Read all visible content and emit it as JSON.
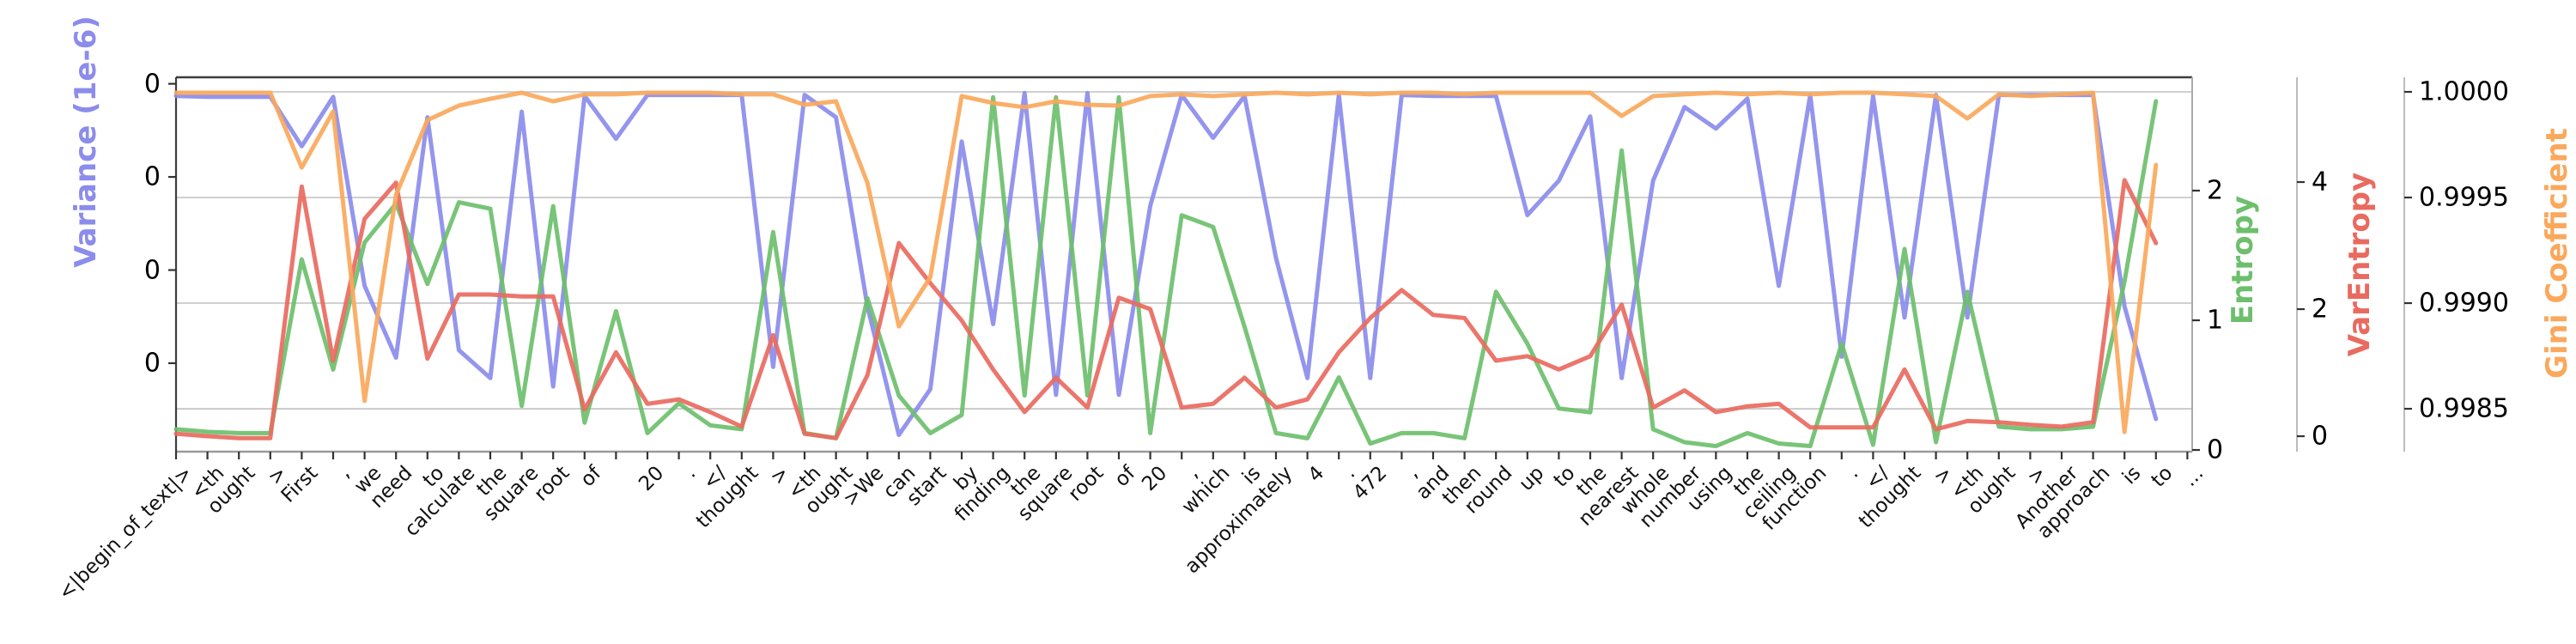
{
  "figure_title": "",
  "chart_data": {
    "type": "line",
    "grid": true,
    "x_categories": [
      "<|begin_of_text|>",
      "<th",
      "ought",
      ">",
      "First",
      ",",
      "we",
      "need",
      "to",
      "calculate",
      "the",
      "square",
      "root",
      "of",
      " ",
      "20",
      ".",
      "</",
      "thought",
      ">",
      "<th",
      "ought",
      ">We",
      "can",
      "start",
      "by",
      "finding",
      "the",
      "square",
      "root",
      "of",
      "20",
      ",",
      "which",
      "is",
      "approximately",
      "4",
      ".",
      "472",
      ",",
      "and",
      "then",
      "round",
      "up",
      "to",
      "the",
      "nearest",
      "whole",
      "number",
      "using",
      "the",
      "ceiling",
      "function",
      ".",
      "</",
      "thought",
      ">",
      "<th",
      "ought",
      ">",
      "Another",
      "approach",
      "is",
      "to",
      "..."
    ],
    "axes": {
      "variance": {
        "label": "Variance (1e-6)",
        "side": "left",
        "color": "#8b8ceb",
        "ticks": [
          0,
          1,
          2,
          3
        ],
        "tick_labels": [
          "0",
          "0",
          "0",
          "0"
        ],
        "range": [
          -0.95,
          3.07
        ],
        "note": "values in tick units; all ticks render as 0 at 1e-6 scale"
      },
      "entropy": {
        "label": "Entropy",
        "side": "right1",
        "color": "#6dbf6d",
        "ticks": [
          0,
          1,
          2
        ],
        "tick_labels": [
          "0",
          "1",
          "2"
        ],
        "range": [
          -0.013,
          2.874
        ]
      },
      "varentropy": {
        "label": "VarEntropy",
        "side": "right2",
        "color": "#e96a5f",
        "ticks": [
          0,
          2,
          4
        ],
        "tick_labels": [
          "0",
          "2",
          "4"
        ],
        "range": [
          -0.243,
          5.649
        ]
      },
      "gini": {
        "label": "Gini Coefficient",
        "side": "right3",
        "color": "#faa85c",
        "ticks": [
          0.9985,
          0.999,
          0.9995,
          1.0
        ],
        "tick_labels": [
          "0.9985",
          "0.9990",
          "0.9995",
          "1.0000"
        ],
        "range": [
          0.998297,
          1.000069
        ]
      }
    },
    "series": [
      {
        "name": "Variance (1e-6)",
        "axis": "variance",
        "color": "#8b8ceb",
        "values": [
          2.87,
          2.86,
          2.86,
          2.86,
          2.33,
          2.86,
          0.83,
          0.06,
          2.64,
          0.14,
          -0.16,
          2.7,
          -0.25,
          2.87,
          2.41,
          2.88,
          2.88,
          2.88,
          2.88,
          -0.04,
          2.88,
          2.64,
          0.61,
          -0.77,
          -0.28,
          2.38,
          0.42,
          2.9,
          -0.34,
          2.9,
          -0.34,
          1.69,
          2.88,
          2.42,
          2.87,
          1.13,
          -0.16,
          2.88,
          -0.16,
          2.88,
          2.87,
          2.87,
          2.87,
          1.59,
          1.96,
          2.65,
          -0.16,
          1.96,
          2.75,
          2.52,
          2.84,
          0.83,
          2.88,
          0.07,
          2.87,
          0.49,
          2.88,
          0.49,
          2.88,
          2.88,
          2.88,
          2.88,
          0.61,
          -0.6,
          null
        ]
      },
      {
        "name": "Entropy",
        "axis": "entropy",
        "color": "#6dbf6d",
        "values": [
          0.16,
          0.14,
          0.13,
          0.13,
          1.47,
          0.62,
          1.6,
          1.9,
          1.28,
          1.91,
          1.86,
          0.34,
          1.88,
          0.21,
          1.07,
          0.13,
          0.36,
          0.19,
          0.16,
          1.68,
          0.13,
          0.09,
          1.17,
          0.42,
          0.13,
          0.27,
          2.72,
          0.42,
          2.72,
          0.42,
          2.72,
          0.13,
          1.81,
          1.72,
          0.95,
          0.13,
          0.09,
          0.56,
          0.05,
          0.13,
          0.13,
          0.09,
          1.22,
          0.82,
          0.32,
          0.29,
          2.31,
          0.16,
          0.06,
          0.03,
          0.13,
          0.05,
          0.03,
          0.82,
          0.04,
          1.55,
          0.06,
          1.22,
          0.18,
          0.16,
          0.16,
          0.18,
          1.3,
          2.69,
          null
        ]
      },
      {
        "name": "VarEntropy",
        "axis": "varentropy",
        "color": "#e96a5f",
        "values": [
          0.04,
          0.0,
          -0.03,
          -0.03,
          3.93,
          1.19,
          3.42,
          3.99,
          1.22,
          2.23,
          2.23,
          2.2,
          2.2,
          0.42,
          1.32,
          0.51,
          0.58,
          0.38,
          0.15,
          1.59,
          0.04,
          -0.03,
          0.96,
          3.04,
          2.41,
          1.82,
          1.05,
          0.38,
          0.92,
          0.45,
          2.18,
          2.0,
          0.45,
          0.51,
          0.92,
          0.45,
          0.58,
          1.32,
          1.86,
          2.3,
          1.91,
          1.86,
          1.19,
          1.26,
          1.05,
          1.26,
          2.07,
          0.45,
          0.72,
          0.38,
          0.47,
          0.51,
          0.14,
          0.14,
          0.14,
          1.05,
          0.11,
          0.24,
          0.22,
          0.18,
          0.15,
          0.22,
          4.03,
          3.04,
          null
        ]
      },
      {
        "name": "Gini Coefficient",
        "axis": "gini",
        "color": "#faa85c",
        "values": [
          0.999996,
          0.999996,
          0.999996,
          0.999996,
          0.999642,
          0.999907,
          0.998537,
          0.999512,
          0.999866,
          0.999935,
          0.999967,
          0.999996,
          0.999955,
          0.999988,
          0.999988,
          0.999996,
          0.999996,
          0.999996,
          0.999988,
          0.999988,
          0.999939,
          0.999955,
          0.999569,
          0.99889,
          0.999122,
          0.99998,
          0.999947,
          0.999927,
          0.999955,
          0.999939,
          0.999935,
          0.99998,
          0.999988,
          0.99998,
          0.999988,
          0.999996,
          0.999988,
          0.999996,
          0.999988,
          0.999996,
          0.999996,
          0.999988,
          0.999996,
          0.999996,
          0.999996,
          0.999996,
          0.999886,
          0.99998,
          0.999988,
          0.999996,
          0.999988,
          0.999996,
          0.999988,
          0.999996,
          0.999996,
          0.999988,
          0.99998,
          0.999874,
          0.999988,
          0.99998,
          0.999988,
          0.999996,
          0.99839,
          0.999654,
          null
        ]
      }
    ],
    "style": {
      "grid_color": "#c9c9c9",
      "spine_dark": "#3d3d3d",
      "spine_gray": "#9a9a9a",
      "spine_light": "#bdbdbd",
      "tick_color": "#333333",
      "line_width": 5
    }
  }
}
